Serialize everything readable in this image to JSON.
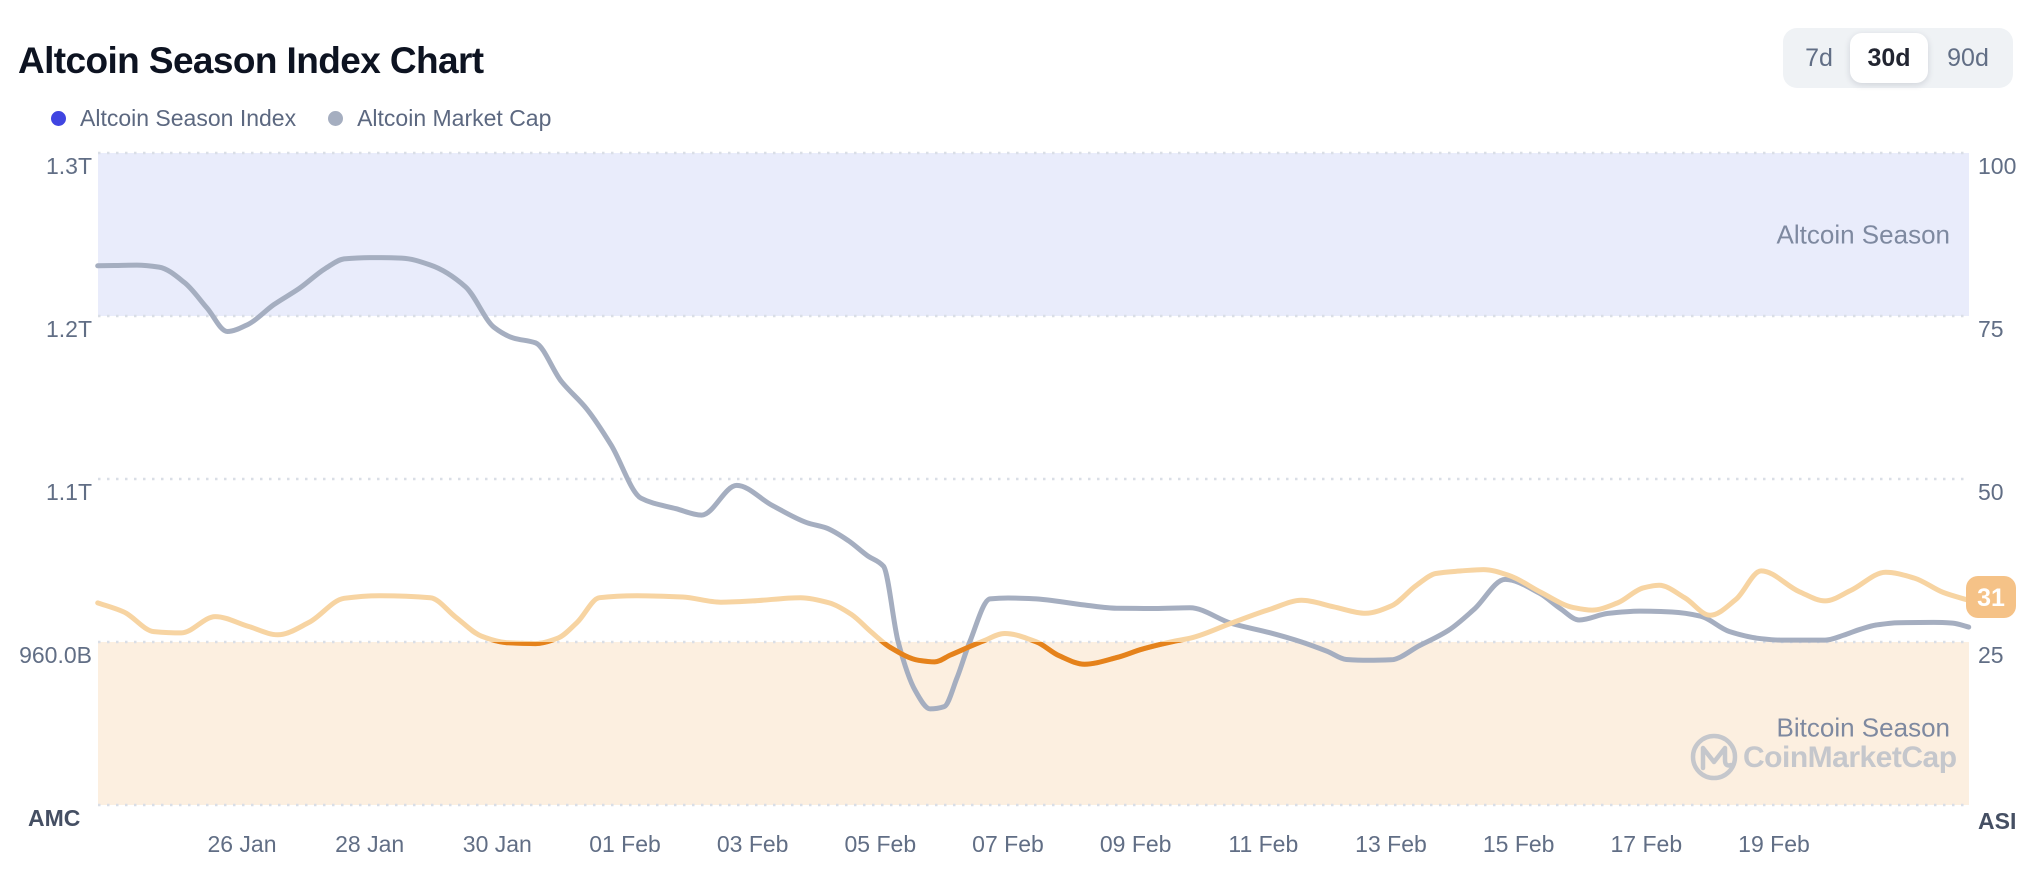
{
  "header": {
    "title": "Altcoin Season Index Chart",
    "ranges": [
      {
        "label": "7d",
        "active": false
      },
      {
        "label": "30d",
        "active": true
      },
      {
        "label": "90d",
        "active": false
      }
    ]
  },
  "legend": [
    {
      "label": "Altcoin Season Index",
      "color": "#4045e1"
    },
    {
      "label": "Altcoin Market Cap",
      "color": "#a5aec0"
    }
  ],
  "watermark": {
    "text": "CoinMarketCap",
    "icon": "coinmarketcap-logo",
    "color": "#c5c7cc"
  },
  "chart_data": {
    "type": "line",
    "x_unit": "day index (0 = 24 Jan)",
    "x_ticks": [
      {
        "day": 2,
        "label": "26 Jan"
      },
      {
        "day": 4,
        "label": "28 Jan"
      },
      {
        "day": 6,
        "label": "30 Jan"
      },
      {
        "day": 8,
        "label": "01 Feb"
      },
      {
        "day": 10,
        "label": "03 Feb"
      },
      {
        "day": 12,
        "label": "05 Feb"
      },
      {
        "day": 14,
        "label": "07 Feb"
      },
      {
        "day": 16,
        "label": "09 Feb"
      },
      {
        "day": 18,
        "label": "11 Feb"
      },
      {
        "day": 20,
        "label": "13 Feb"
      },
      {
        "day": 22,
        "label": "15 Feb"
      },
      {
        "day": 24,
        "label": "17 Feb"
      },
      {
        "day": 26,
        "label": "19 Feb"
      }
    ],
    "left_axis": {
      "name": "AMC",
      "tick_labels": [
        "1.3T",
        "1.2T",
        "1.1T",
        "960.0B"
      ],
      "tick_values_trillions": [
        1.3,
        1.2,
        1.1,
        0.96
      ]
    },
    "right_axis": {
      "name": "ASI",
      "tick_labels": [
        "100",
        "75",
        "50",
        "25"
      ],
      "tick_values": [
        100,
        75,
        50,
        25
      ],
      "ylim": [
        0,
        100
      ]
    },
    "zones": [
      {
        "label": "Altcoin Season",
        "range": [
          75,
          100
        ],
        "color": "#e9ecfb"
      },
      {
        "label": "Bitcoin Season",
        "range": [
          0,
          25
        ],
        "color": "#fcefe0"
      }
    ],
    "series": [
      {
        "name": "Altcoin Market Cap",
        "axis": "left",
        "color": "#a5aec0",
        "points": [
          [
            -0.26,
            1.2308
          ],
          [
            0,
            1.231
          ],
          [
            0.35,
            1.2312
          ],
          [
            0.7,
            1.23
          ],
          [
            1.1,
            1.2205
          ],
          [
            1.45,
            1.205
          ],
          [
            1.77,
            1.1905
          ],
          [
            2.1,
            1.195
          ],
          [
            2.5,
            1.207
          ],
          [
            2.9,
            1.217
          ],
          [
            3.3,
            1.229
          ],
          [
            3.6,
            1.235
          ],
          [
            4.0,
            1.2358
          ],
          [
            4.5,
            1.2355
          ],
          [
            4.95,
            1.2313
          ],
          [
            5.5,
            1.218
          ],
          [
            5.95,
            1.193
          ],
          [
            6.25,
            1.1865
          ],
          [
            6.6,
            1.1835
          ],
          [
            7.0,
            1.16
          ],
          [
            7.4,
            1.143
          ],
          [
            7.78,
            1.121
          ],
          [
            8.25,
            1.0835
          ],
          [
            8.8,
            1.0745
          ],
          [
            9.2,
            1.069
          ],
          [
            9.75,
            1.0945
          ],
          [
            10.3,
            1.0775
          ],
          [
            10.85,
            1.0625
          ],
          [
            11.15,
            1.058
          ],
          [
            11.5,
            1.047
          ],
          [
            11.8,
            1.034
          ],
          [
            12.05,
            1.025
          ],
          [
            12.28,
            0.96
          ],
          [
            12.55,
            0.918
          ],
          [
            12.78,
            0.9025
          ],
          [
            13.0,
            0.9045
          ],
          [
            13.2,
            0.929
          ],
          [
            13.4,
            0.96
          ],
          [
            13.72,
            0.997
          ],
          [
            14.0,
            0.9978
          ],
          [
            14.4,
            0.9972
          ],
          [
            15.2,
            0.9918
          ],
          [
            15.7,
            0.989
          ],
          [
            16.3,
            0.9888
          ],
          [
            16.85,
            0.9894
          ],
          [
            17.5,
            0.976
          ],
          [
            18.1,
            0.968
          ],
          [
            18.6,
            0.96
          ],
          [
            19.0,
            0.952
          ],
          [
            19.3,
            0.945
          ],
          [
            19.65,
            0.9443
          ],
          [
            20.0,
            0.9447
          ],
          [
            20.45,
            0.957
          ],
          [
            20.9,
            0.97
          ],
          [
            21.3,
            0.988
          ],
          [
            21.79,
            1.0138
          ],
          [
            22.33,
            1.0018
          ],
          [
            22.65,
            0.9889
          ],
          [
            22.95,
            0.9789
          ],
          [
            23.4,
            0.9846
          ],
          [
            23.9,
            0.9865
          ],
          [
            24.4,
            0.9858
          ],
          [
            24.85,
            0.9822
          ],
          [
            25.3,
            0.969
          ],
          [
            25.8,
            0.9628
          ],
          [
            26.1,
            0.9616
          ],
          [
            26.8,
            0.9616
          ],
          [
            27.1,
            0.966
          ],
          [
            27.35,
            0.9709
          ],
          [
            27.6,
            0.9746
          ],
          [
            27.95,
            0.9766
          ],
          [
            28.5,
            0.9768
          ],
          [
            28.8,
            0.9762
          ],
          [
            29.05,
            0.9728
          ]
        ]
      },
      {
        "name": "Altcoin Season Index",
        "axis": "right",
        "color": "#f7d4a2",
        "below_threshold_color": "#e5821b",
        "threshold": 25,
        "points": [
          [
            -0.26,
            31.0
          ],
          [
            0.15,
            29.6
          ],
          [
            0.62,
            26.6
          ],
          [
            1.05,
            26.4
          ],
          [
            1.58,
            28.9
          ],
          [
            2.1,
            27.4
          ],
          [
            2.56,
            26.1
          ],
          [
            3.05,
            28.0
          ],
          [
            3.6,
            31.7
          ],
          [
            4.15,
            32.1
          ],
          [
            4.95,
            31.8
          ],
          [
            5.35,
            28.8
          ],
          [
            5.75,
            25.9
          ],
          [
            6.15,
            24.9
          ],
          [
            6.6,
            24.75
          ],
          [
            6.95,
            25.6
          ],
          [
            7.25,
            28.0
          ],
          [
            7.6,
            31.8
          ],
          [
            8.2,
            32.1
          ],
          [
            8.9,
            31.9
          ],
          [
            9.5,
            31.1
          ],
          [
            10.0,
            31.3
          ],
          [
            10.75,
            31.8
          ],
          [
            11.2,
            31.0
          ],
          [
            11.55,
            29.2
          ],
          [
            11.85,
            26.6
          ],
          [
            12.15,
            24.2
          ],
          [
            12.6,
            22.2
          ],
          [
            12.85,
            21.95
          ],
          [
            13.1,
            23.0
          ],
          [
            13.6,
            25.1
          ],
          [
            13.95,
            26.3
          ],
          [
            14.45,
            25.0
          ],
          [
            14.8,
            22.9
          ],
          [
            15.2,
            21.6
          ],
          [
            15.7,
            22.6
          ],
          [
            16.1,
            23.9
          ],
          [
            16.55,
            25.0
          ],
          [
            16.9,
            25.7
          ],
          [
            17.5,
            27.9
          ],
          [
            18.1,
            30.0
          ],
          [
            18.6,
            31.4
          ],
          [
            19.1,
            30.4
          ],
          [
            19.6,
            29.4
          ],
          [
            20.0,
            30.5
          ],
          [
            20.4,
            33.7
          ],
          [
            20.7,
            35.5
          ],
          [
            21.1,
            35.9
          ],
          [
            21.45,
            36.1
          ],
          [
            21.85,
            35.2
          ],
          [
            22.35,
            32.6
          ],
          [
            22.85,
            30.3
          ],
          [
            23.15,
            29.9
          ],
          [
            23.55,
            31.0
          ],
          [
            23.95,
            33.3
          ],
          [
            24.2,
            33.7
          ],
          [
            24.6,
            31.8
          ],
          [
            25.0,
            29.1
          ],
          [
            25.4,
            31.5
          ],
          [
            25.8,
            35.9
          ],
          [
            26.4,
            32.7
          ],
          [
            26.8,
            31.3
          ],
          [
            27.2,
            32.9
          ],
          [
            27.75,
            35.7
          ],
          [
            28.2,
            34.8
          ],
          [
            28.65,
            32.6
          ],
          [
            29.05,
            31.4
          ]
        ]
      }
    ],
    "current_value": {
      "label": "31",
      "badge_color": "#f5c287",
      "text_color": "#ffffff"
    }
  }
}
